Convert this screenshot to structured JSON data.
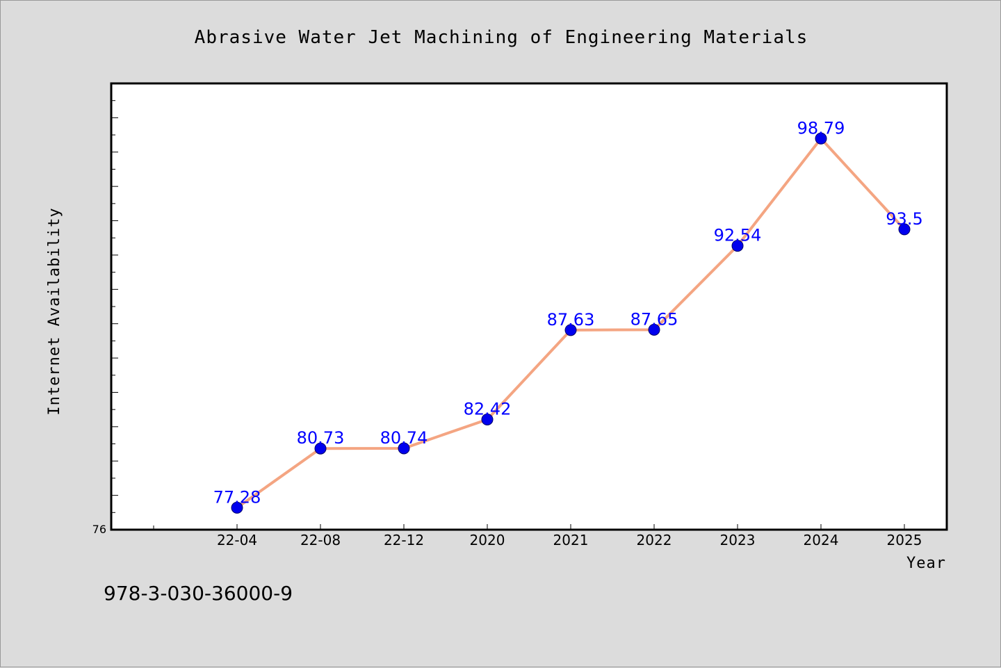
{
  "chart_data": {
    "type": "line",
    "title": "Abrasive Water Jet Machining of Engineering Materials",
    "xlabel": "Year",
    "ylabel": "Internet Availability",
    "categories": [
      "22-04",
      "22-08",
      "22-12",
      "2020",
      "2021",
      "2022",
      "2023",
      "2024",
      "2025"
    ],
    "series": [
      {
        "values": [
          77.28,
          80.73,
          80.74,
          82.42,
          87.63,
          87.65,
          92.54,
          98.79,
          93.5
        ],
        "labels": [
          "77.28",
          "80.73",
          "80.74",
          "82.42",
          "87.63",
          "87.65",
          "92.54",
          "98.79",
          "93.5"
        ]
      }
    ],
    "ylim": [
      76,
      102
    ],
    "yticks": [
      "76"
    ],
    "grid": false,
    "colors": {
      "line": "#f4a582",
      "marker": "#0000ee",
      "label": "#0000ff",
      "plot_bg": "#ffffff",
      "page_bg": "#dcdcdc"
    }
  },
  "footer": {
    "isbn": "978-3-030-36000-9"
  }
}
